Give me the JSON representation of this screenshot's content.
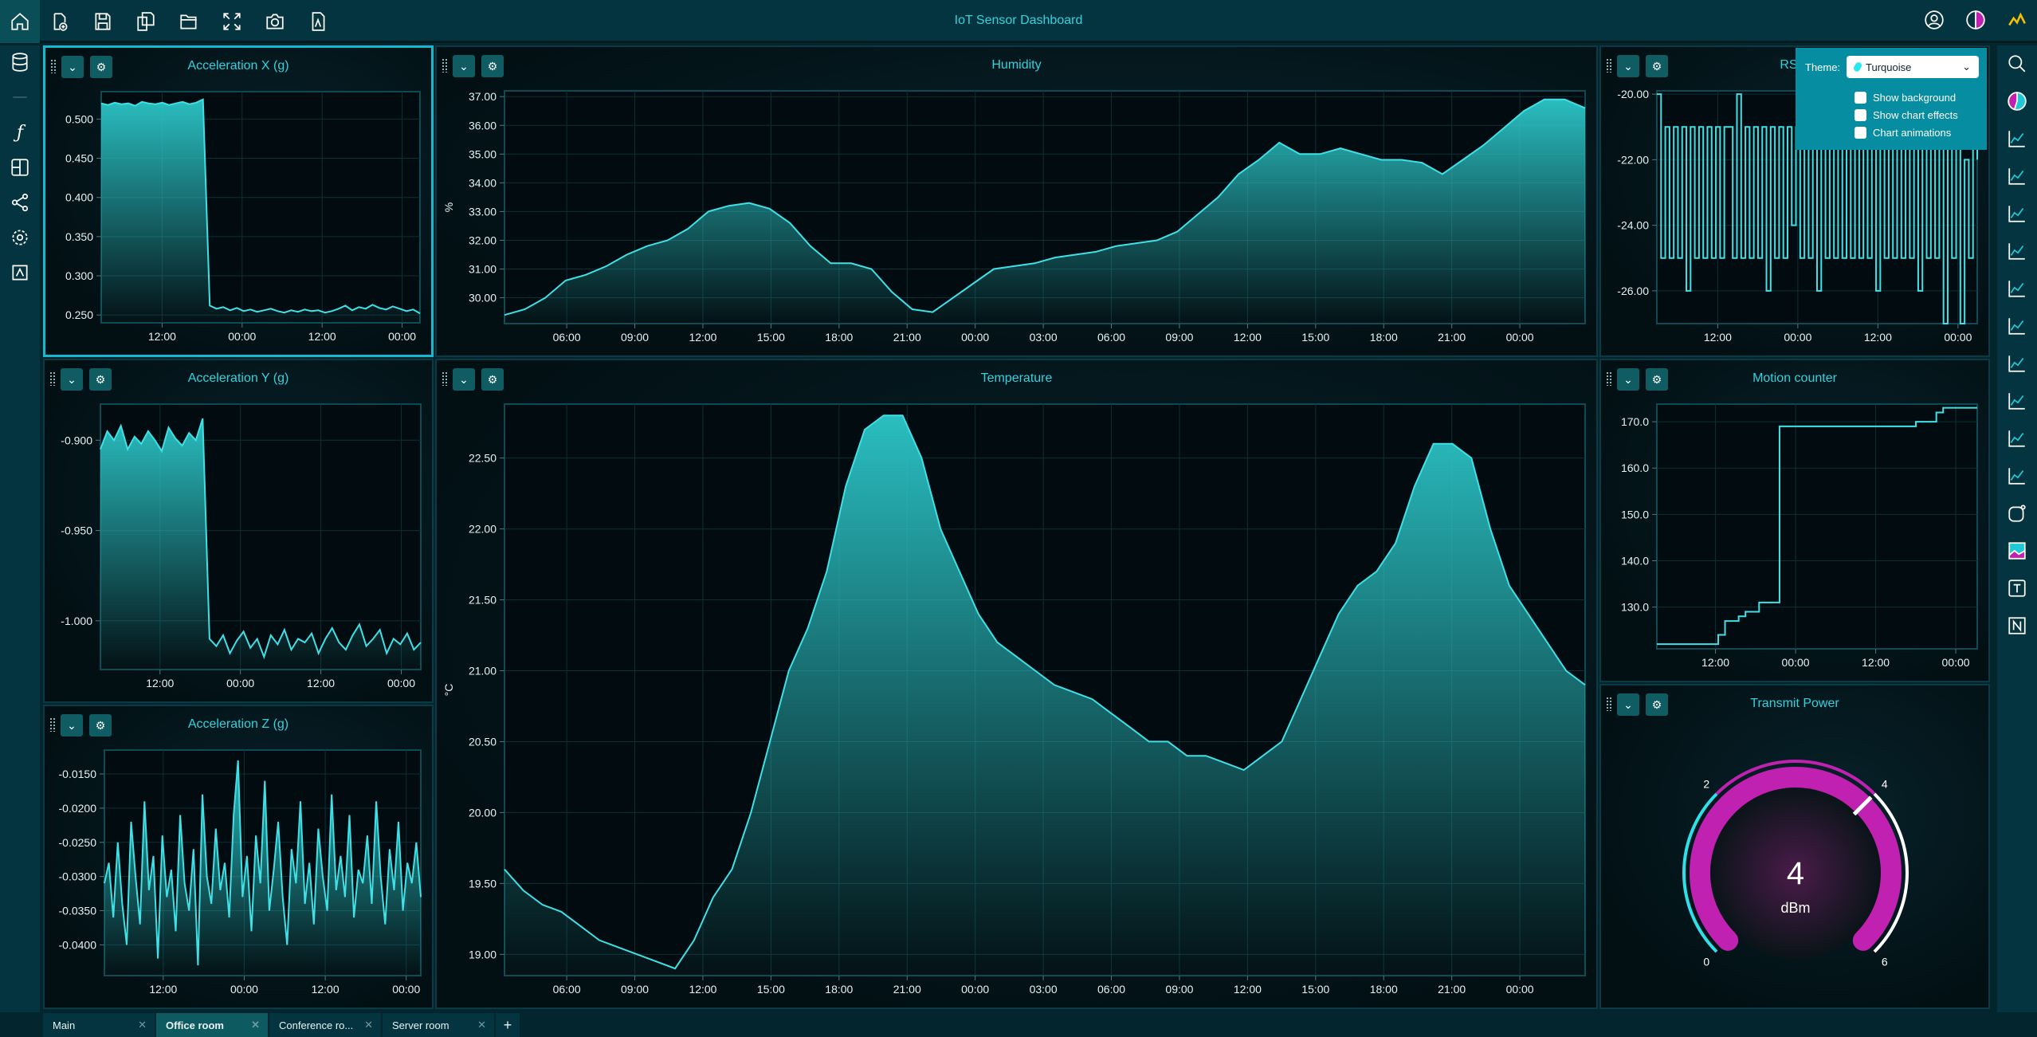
{
  "app": {
    "title": "IoT Sensor Dashboard"
  },
  "toolbar": {
    "icons": [
      "home-icon",
      "new-file-icon",
      "save-icon",
      "save-all-icon",
      "open-folder-icon",
      "fullscreen-icon",
      "camera-icon",
      "pdf-icon"
    ],
    "right_icons": [
      "user-icon",
      "theme-icon",
      "app-logo-icon"
    ]
  },
  "theme_menu": {
    "label": "Theme:",
    "selected": "Turquoise",
    "options": [
      {
        "label": "Show background",
        "checked": false
      },
      {
        "label": "Show chart effects",
        "checked": false
      },
      {
        "label": "Chart animations",
        "checked": false
      }
    ]
  },
  "tabs": [
    {
      "label": "Main",
      "active": false
    },
    {
      "label": "Office room",
      "active": true
    },
    {
      "label": "Conference ro...",
      "active": false
    },
    {
      "label": "Server room",
      "active": false
    }
  ],
  "tab_add": "+",
  "colors": {
    "accent": "#2fd3df",
    "line": "#3fe0e6",
    "gauge_arc": "#c021b0",
    "panel_border_selected": "#17b7cf",
    "theme_menu": "#078da1"
  },
  "chart_data": [
    {
      "id": "accx",
      "type": "area",
      "title": "Acceleration X (g)",
      "ylim": [
        0.24,
        0.535
      ],
      "yticks": [
        "0.500",
        "0.450",
        "0.400",
        "0.350",
        "0.300",
        "0.250"
      ],
      "ytick_values": [
        0.5,
        0.45,
        0.4,
        0.35,
        0.3,
        0.25
      ],
      "xticks": [
        "12:00",
        "00:00",
        "12:00",
        "00:00"
      ],
      "values": [
        0.52,
        0.518,
        0.521,
        0.519,
        0.52,
        0.517,
        0.522,
        0.52,
        0.519,
        0.521,
        0.518,
        0.52,
        0.522,
        0.519,
        0.521,
        0.525,
        0.262,
        0.258,
        0.26,
        0.256,
        0.259,
        0.255,
        0.257,
        0.254,
        0.256,
        0.258,
        0.255,
        0.253,
        0.256,
        0.254,
        0.257,
        0.255,
        0.256,
        0.253,
        0.255,
        0.258,
        0.262,
        0.256,
        0.26,
        0.258,
        0.263,
        0.259,
        0.257,
        0.261,
        0.258,
        0.255,
        0.257,
        0.252
      ]
    },
    {
      "id": "humidity",
      "type": "area",
      "title": "Humidity",
      "ylabel": "%",
      "ylim": [
        29.1,
        37.2
      ],
      "yticks": [
        "37.00",
        "36.00",
        "35.00",
        "34.00",
        "33.00",
        "32.00",
        "31.00",
        "30.00"
      ],
      "ytick_values": [
        37,
        36,
        35,
        34,
        33,
        32,
        31,
        30
      ],
      "xticks": [
        "06:00",
        "09:00",
        "12:00",
        "15:00",
        "18:00",
        "21:00",
        "00:00",
        "03:00",
        "06:00",
        "09:00",
        "12:00",
        "15:00",
        "18:00",
        "21:00",
        "00:00"
      ],
      "values": [
        29.4,
        29.6,
        30.0,
        30.6,
        30.8,
        31.1,
        31.5,
        31.8,
        32.0,
        32.4,
        33.0,
        33.2,
        33.3,
        33.1,
        32.6,
        31.8,
        31.2,
        31.2,
        31.0,
        30.2,
        29.6,
        29.5,
        30.0,
        30.5,
        31.0,
        31.1,
        31.2,
        31.4,
        31.5,
        31.6,
        31.8,
        31.9,
        32.0,
        32.3,
        32.9,
        33.5,
        34.3,
        34.8,
        35.4,
        35.0,
        35.0,
        35.2,
        35.0,
        34.8,
        34.8,
        34.7,
        34.3,
        34.8,
        35.3,
        35.9,
        36.5,
        36.9,
        36.9,
        36.6
      ]
    },
    {
      "id": "rssi",
      "type": "line",
      "title": "RSSI",
      "ylim": [
        -27,
        -19.9
      ],
      "yticks": [
        "-20.00",
        "-22.00",
        "-24.00",
        "-26.00"
      ],
      "ytick_values": [
        -20,
        -22,
        -24,
        -26
      ],
      "xticks": [
        "12:00",
        "00:00",
        "12:00",
        "00:00"
      ],
      "values": [
        -20,
        -25,
        -21,
        -25,
        -21,
        -25,
        -21,
        -26,
        -21,
        -25,
        -21,
        -25,
        -21,
        -25,
        -21,
        -25,
        -21,
        -21,
        -25,
        -20,
        -25,
        -21,
        -25,
        -21,
        -25,
        -21,
        -26,
        -21,
        -25,
        -21,
        -25,
        -21,
        -24,
        -21,
        -25,
        -21,
        -25,
        -21,
        -26,
        -21,
        -25,
        -21,
        -25,
        -21,
        -25,
        -21,
        -25,
        -21,
        -25,
        -21,
        -25,
        -21,
        -26,
        -21,
        -25,
        -21,
        -25,
        -21,
        -25,
        -21,
        -25,
        -21,
        -26,
        -21,
        -25,
        -20,
        -25,
        -21,
        -27,
        -21,
        -25,
        -21,
        -27,
        -22,
        -25,
        -21,
        -22
      ]
    },
    {
      "id": "accy",
      "type": "area",
      "title": "Acceleration Y (g)",
      "ylim": [
        -1.027,
        -0.88
      ],
      "yticks": [
        "-0.900",
        "-0.950",
        "-1.000"
      ],
      "ytick_values": [
        -0.9,
        -0.95,
        -1.0
      ],
      "xticks": [
        "12:00",
        "00:00",
        "12:00",
        "00:00"
      ],
      "values": [
        -0.905,
        -0.895,
        -0.9,
        -0.892,
        -0.905,
        -0.898,
        -0.902,
        -0.895,
        -0.9,
        -0.906,
        -0.893,
        -0.899,
        -0.903,
        -0.896,
        -0.9,
        -0.888,
        -1.01,
        -1.014,
        -1.008,
        -1.018,
        -1.011,
        -1.006,
        -1.015,
        -1.01,
        -1.02,
        -1.008,
        -1.013,
        -1.005,
        -1.016,
        -1.01,
        -1.012,
        -1.007,
        -1.018,
        -1.01,
        -1.004,
        -1.012,
        -1.016,
        -1.008,
        -1.002,
        -1.014,
        -1.01,
        -1.005,
        -1.018,
        -1.01,
        -1.013,
        -1.007,
        -1.016,
        -1.012
      ]
    },
    {
      "id": "accz",
      "type": "area",
      "title": "Acceleration Z (g)",
      "ylim": [
        -0.0445,
        -0.0115
      ],
      "yticks": [
        "-0.0150",
        "-0.0200",
        "-0.0250",
        "-0.0300",
        "-0.0350",
        "-0.0400"
      ],
      "ytick_values": [
        -0.015,
        -0.02,
        -0.025,
        -0.03,
        -0.035,
        -0.04
      ],
      "xticks": [
        "12:00",
        "00:00",
        "12:00",
        "00:00"
      ],
      "values": [
        -0.031,
        -0.028,
        -0.036,
        -0.025,
        -0.034,
        -0.04,
        -0.022,
        -0.03,
        -0.037,
        -0.019,
        -0.032,
        -0.027,
        -0.042,
        -0.024,
        -0.033,
        -0.029,
        -0.038,
        -0.021,
        -0.031,
        -0.035,
        -0.026,
        -0.043,
        -0.018,
        -0.03,
        -0.034,
        -0.023,
        -0.032,
        -0.028,
        -0.036,
        -0.021,
        -0.013,
        -0.033,
        -0.027,
        -0.038,
        -0.024,
        -0.031,
        -0.016,
        -0.035,
        -0.029,
        -0.022,
        -0.033,
        -0.04,
        -0.026,
        -0.031,
        -0.019,
        -0.034,
        -0.028,
        -0.037,
        -0.023,
        -0.03,
        -0.035,
        -0.018,
        -0.032,
        -0.027,
        -0.033,
        -0.021,
        -0.036,
        -0.029,
        -0.031,
        -0.024,
        -0.034,
        -0.019,
        -0.03,
        -0.037,
        -0.026,
        -0.032,
        -0.022,
        -0.035,
        -0.028,
        -0.031,
        -0.025,
        -0.033
      ]
    },
    {
      "id": "temperature",
      "type": "area",
      "title": "Temperature",
      "ylabel": "°C",
      "ylim": [
        18.85,
        22.88
      ],
      "yticks": [
        "22.50",
        "22.00",
        "21.50",
        "21.00",
        "20.50",
        "20.00",
        "19.50",
        "19.00"
      ],
      "ytick_values": [
        22.5,
        22,
        21.5,
        21,
        20.5,
        20,
        19.5,
        19
      ],
      "xticks": [
        "06:00",
        "09:00",
        "12:00",
        "15:00",
        "18:00",
        "21:00",
        "00:00",
        "03:00",
        "06:00",
        "09:00",
        "12:00",
        "15:00",
        "18:00",
        "21:00",
        "00:00"
      ],
      "values": [
        19.6,
        19.45,
        19.35,
        19.3,
        19.2,
        19.1,
        19.05,
        19.0,
        18.95,
        18.9,
        19.1,
        19.4,
        19.6,
        20.0,
        20.5,
        21.0,
        21.3,
        21.7,
        22.3,
        22.7,
        22.8,
        22.8,
        22.5,
        22.0,
        21.7,
        21.4,
        21.2,
        21.1,
        21.0,
        20.9,
        20.85,
        20.8,
        20.7,
        20.6,
        20.5,
        20.5,
        20.4,
        20.4,
        20.35,
        20.3,
        20.4,
        20.5,
        20.8,
        21.1,
        21.4,
        21.6,
        21.7,
        21.9,
        22.3,
        22.6,
        22.6,
        22.5,
        22.0,
        21.6,
        21.4,
        21.2,
        21.0,
        20.9
      ]
    },
    {
      "id": "motion",
      "type": "line",
      "title": "Motion counter",
      "ylim": [
        121,
        173.8
      ],
      "yticks": [
        "170.0",
        "160.0",
        "150.0",
        "140.0",
        "130.0"
      ],
      "ytick_values": [
        170,
        160,
        150,
        140,
        130
      ],
      "xticks": [
        "12:00",
        "00:00",
        "12:00",
        "00:00"
      ],
      "values": [
        122,
        122,
        122,
        122,
        122,
        122,
        122,
        122,
        122,
        124,
        127,
        127,
        128,
        129,
        129,
        131,
        131,
        131,
        169,
        169,
        169,
        169,
        169,
        169,
        169,
        169,
        169,
        169,
        169,
        169,
        169,
        169,
        169,
        169,
        169,
        169,
        169,
        169,
        170,
        170,
        170,
        172,
        173,
        173,
        173,
        173,
        173,
        173
      ]
    }
  ],
  "gauge": {
    "title": "Transmit Power",
    "value": "4",
    "value_num": 4,
    "unit": "dBm",
    "min": 0,
    "max": 6,
    "ticks": [
      "0",
      "2",
      "4",
      "6"
    ]
  }
}
